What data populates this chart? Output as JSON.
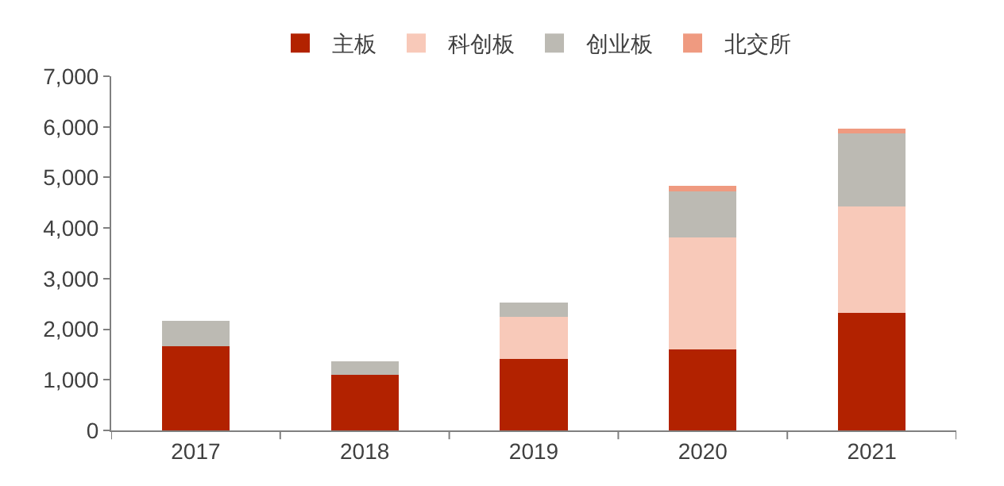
{
  "chart_data": {
    "type": "bar",
    "stacked": true,
    "categories": [
      "2017",
      "2018",
      "2019",
      "2020",
      "2021"
    ],
    "series": [
      {
        "name": "主板",
        "color": "#b22200",
        "values": [
          1670,
          1100,
          1420,
          1600,
          2330
        ]
      },
      {
        "name": "科创板",
        "color": "#f8c9b9",
        "values": [
          null,
          null,
          820,
          2210,
          2090
        ]
      },
      {
        "name": "创业板",
        "color": "#bcbab3",
        "values": [
          500,
          270,
          290,
          910,
          1480
        ]
      },
      {
        "name": "北交所",
        "color": "#ef9a80",
        "values": [
          null,
          null,
          null,
          120,
          60
        ]
      }
    ],
    "ylim": [
      0,
      7000
    ],
    "yticks": [
      {
        "value": 0,
        "label": "0"
      },
      {
        "value": 1000,
        "label": "1,000"
      },
      {
        "value": 2000,
        "label": "2,000"
      },
      {
        "value": 3000,
        "label": "3,000"
      },
      {
        "value": 4000,
        "label": "4,000"
      },
      {
        "value": 5000,
        "label": "5,000"
      },
      {
        "value": 6000,
        "label": "6,000"
      },
      {
        "value": 7000,
        "label": "7,000"
      }
    ],
    "grid": false,
    "legend": "top"
  }
}
